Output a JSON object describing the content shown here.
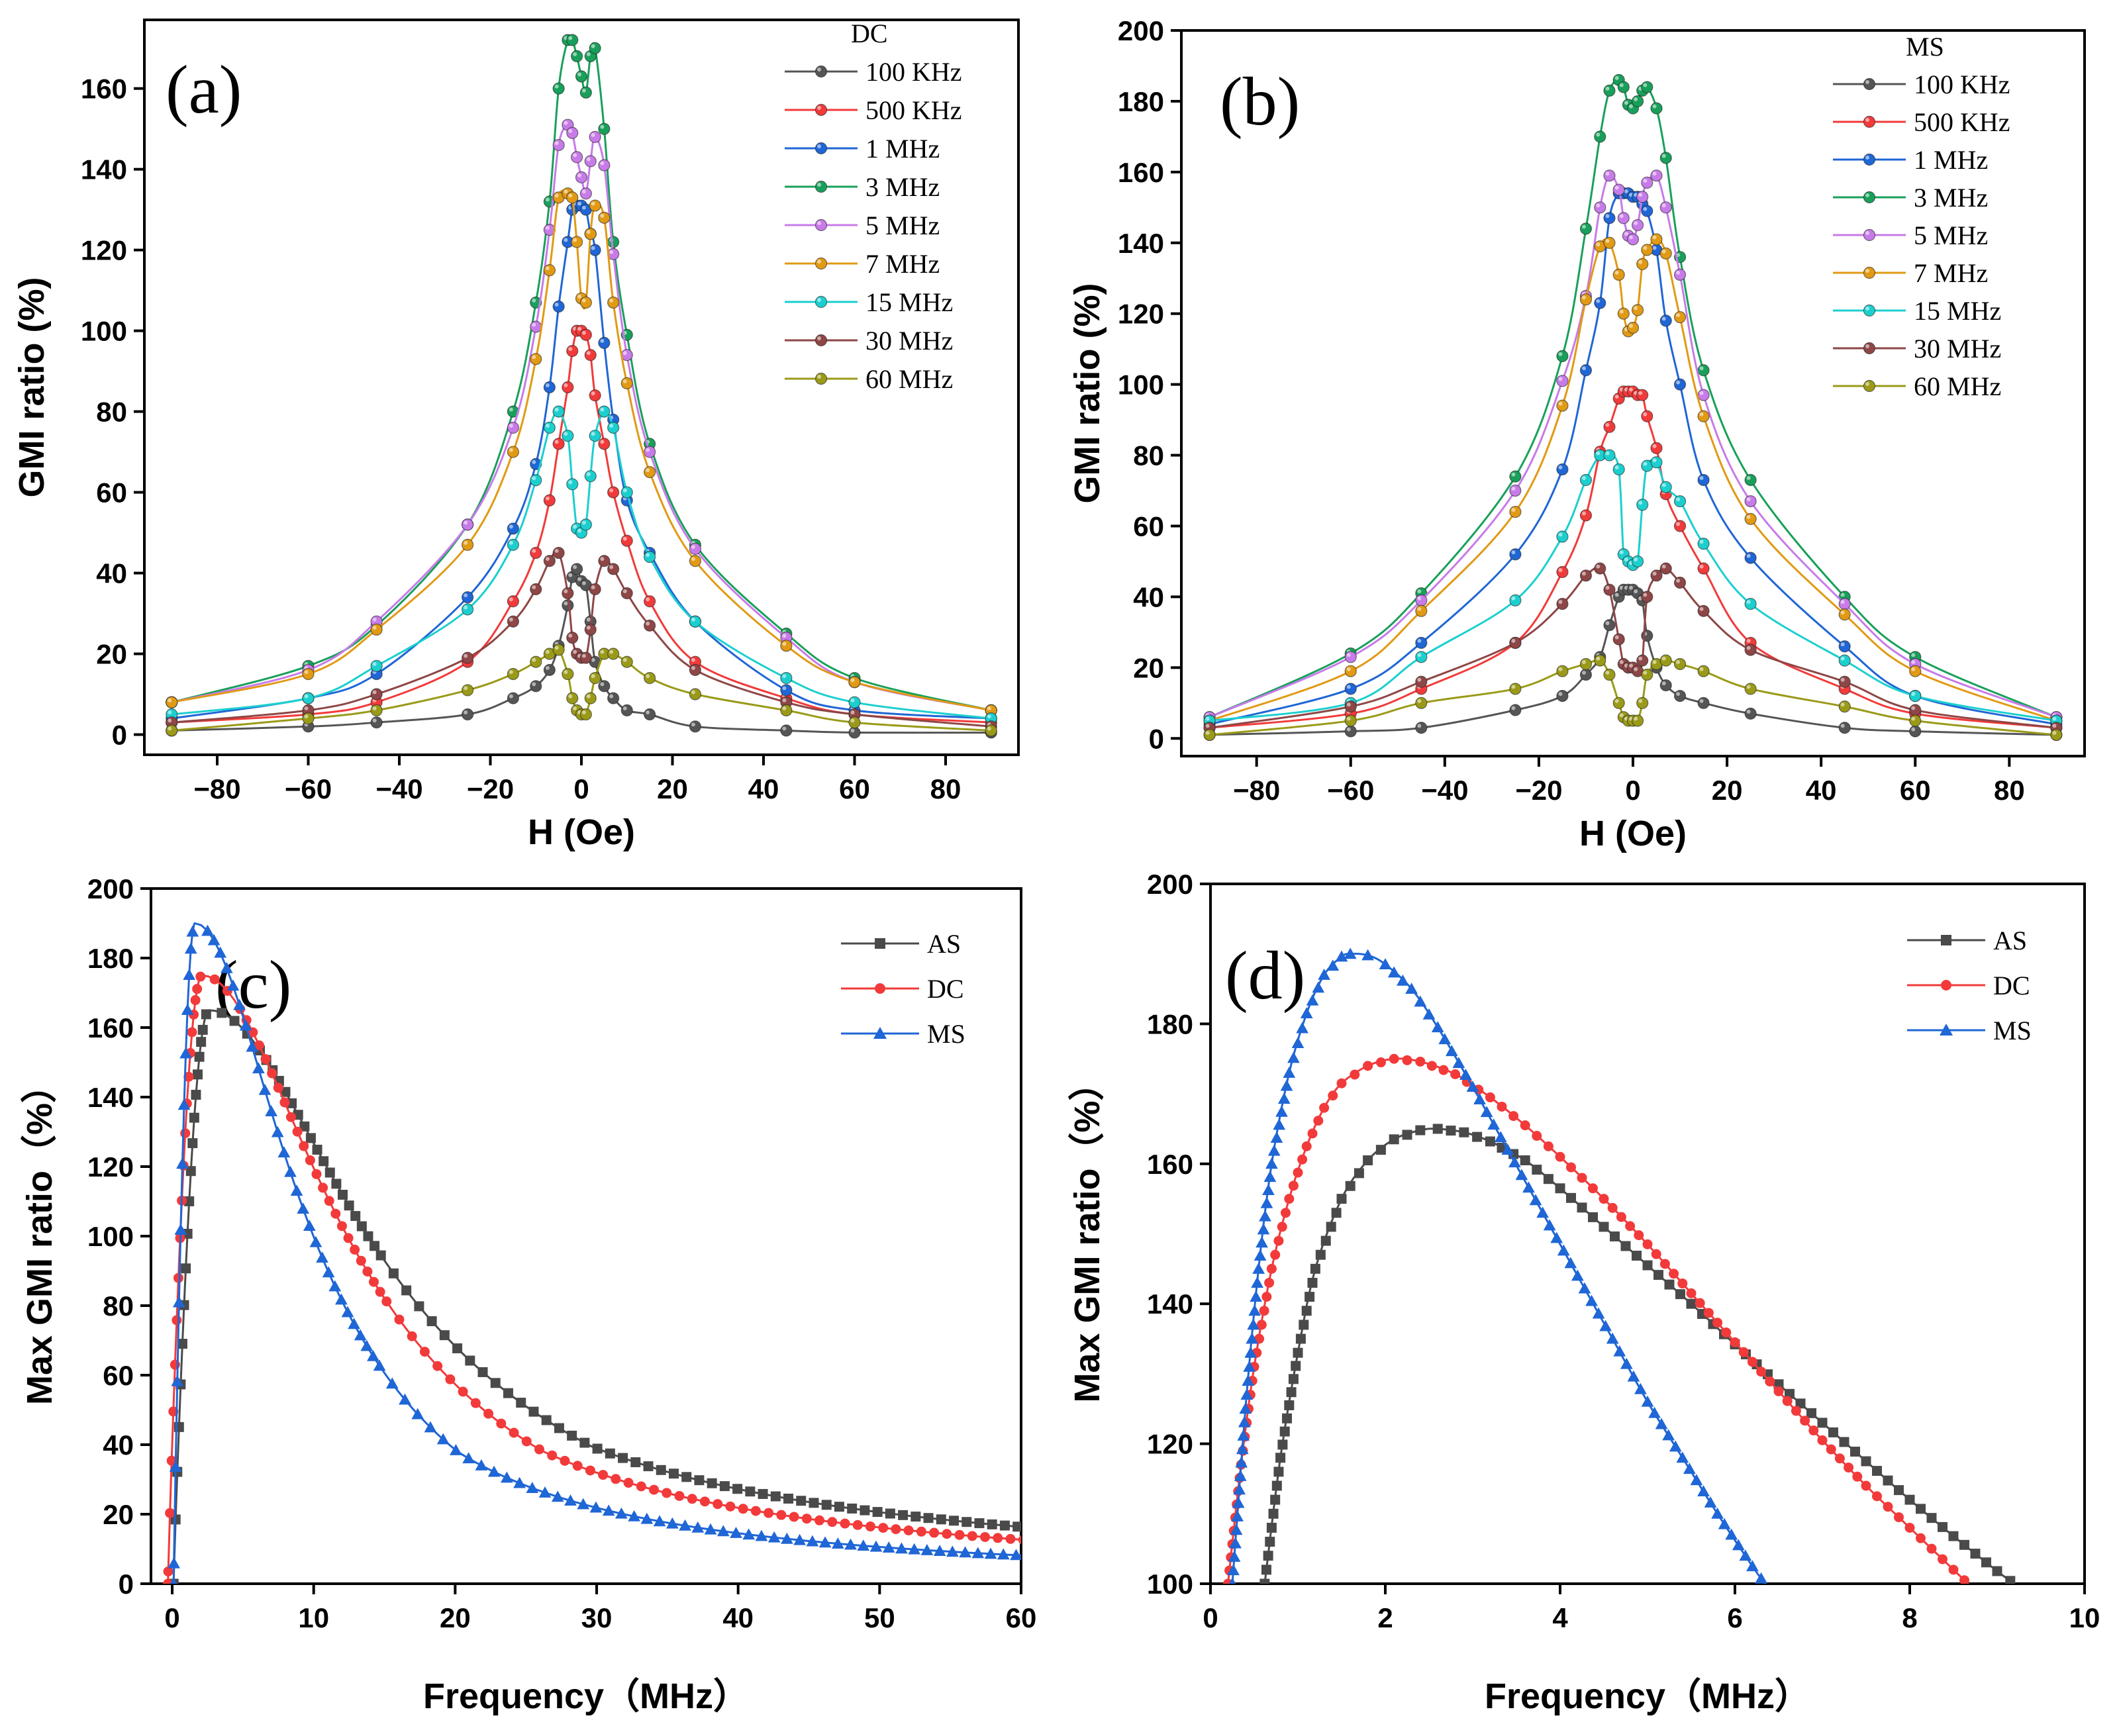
{
  "chart_data": [
    {
      "id": "a",
      "type": "line",
      "panel_label": "(a)",
      "legend_title": "DC",
      "xlabel": "H (Oe)",
      "ylabel": "GMI ratio (%)",
      "xlim": [
        -96,
        96
      ],
      "ylim": [
        -5,
        177
      ],
      "xticks": [
        -80,
        -60,
        -40,
        -20,
        0,
        20,
        40,
        60,
        80
      ],
      "yticks": [
        0,
        20,
        40,
        60,
        80,
        100,
        120,
        140,
        160
      ],
      "x": [
        -90,
        -60,
        -45,
        -25,
        -15,
        -10,
        -7,
        -5,
        -3,
        -2,
        -1,
        0,
        1,
        2,
        3,
        5,
        7,
        10,
        15,
        25,
        45,
        60,
        90
      ],
      "series": [
        {
          "name": "100 KHz",
          "color": "#555555",
          "values": [
            1,
            2,
            3,
            5,
            9,
            12,
            16,
            22,
            32,
            39,
            41,
            38,
            37,
            28,
            18,
            12,
            9,
            6,
            5,
            2,
            1,
            0.5,
            0.5
          ]
        },
        {
          "name": "500 KHz",
          "color": "#f23a3a",
          "values": [
            3,
            5,
            8,
            18,
            33,
            45,
            58,
            72,
            86,
            95,
            100,
            100,
            99,
            94,
            84,
            72,
            60,
            48,
            33,
            18,
            9,
            5,
            3
          ]
        },
        {
          "name": "1 MHz",
          "color": "#1f66d6",
          "values": [
            4,
            9,
            15,
            34,
            51,
            67,
            86,
            106,
            122,
            130,
            131,
            131,
            130,
            124,
            120,
            97,
            78,
            58,
            45,
            28,
            11,
            6,
            4
          ]
        },
        {
          "name": "3 MHz",
          "color": "#18a05a",
          "values": [
            8,
            17,
            27,
            52,
            80,
            107,
            132,
            160,
            172,
            172,
            168,
            163,
            159,
            168,
            170,
            150,
            122,
            99,
            72,
            47,
            25,
            14,
            6
          ]
        },
        {
          "name": "5 MHz",
          "color": "#c77be8",
          "values": [
            8,
            16,
            28,
            52,
            76,
            101,
            125,
            146,
            151,
            149,
            143,
            138,
            134,
            142,
            148,
            141,
            119,
            94,
            70,
            46,
            24,
            13,
            6
          ]
        },
        {
          "name": "7 MHz",
          "color": "#e19a14",
          "values": [
            8,
            15,
            26,
            47,
            70,
            93,
            115,
            133,
            134,
            133,
            122,
            108,
            107,
            124,
            131,
            128,
            107,
            87,
            65,
            43,
            22,
            13,
            6
          ]
        },
        {
          "name": "15 MHz",
          "color": "#1ccfcf",
          "values": [
            5,
            9,
            17,
            31,
            47,
            63,
            76,
            80,
            74,
            62,
            51,
            50,
            52,
            64,
            74,
            80,
            76,
            60,
            44,
            28,
            14,
            8,
            4
          ]
        },
        {
          "name": "30 MHz",
          "color": "#8e4646",
          "values": [
            3,
            6,
            10,
            19,
            28,
            36,
            43,
            45,
            35,
            24,
            20,
            19,
            19,
            26,
            36,
            43,
            41,
            35,
            27,
            16,
            8,
            5,
            2
          ]
        },
        {
          "name": "60 MHz",
          "color": "#9a9a18",
          "values": [
            1,
            4,
            6,
            11,
            15,
            18,
            20,
            21,
            15,
            9,
            6,
            5,
            5,
            9,
            14,
            20,
            20,
            18,
            14,
            10,
            6,
            3,
            1
          ]
        }
      ]
    },
    {
      "id": "b",
      "type": "line",
      "panel_label": "(b)",
      "legend_title": "MS",
      "xlabel": "H (Oe)",
      "ylabel": "GMI ratio (%)",
      "xlim": [
        -96,
        96
      ],
      "ylim": [
        -5,
        200
      ],
      "xticks": [
        -80,
        -60,
        -40,
        -20,
        0,
        20,
        40,
        60,
        80
      ],
      "yticks": [
        0,
        20,
        40,
        60,
        80,
        100,
        120,
        140,
        160,
        180,
        200
      ],
      "x": [
        -90,
        -60,
        -45,
        -25,
        -15,
        -10,
        -7,
        -5,
        -3,
        -2,
        -1,
        0,
        1,
        2,
        3,
        5,
        7,
        10,
        15,
        25,
        45,
        60,
        90
      ],
      "series": [
        {
          "name": "100 KHz",
          "color": "#555555",
          "values": [
            1,
            2,
            3,
            8,
            12,
            18,
            23,
            32,
            40,
            42,
            42,
            42,
            41,
            39,
            29,
            20,
            15,
            12,
            10,
            7,
            3,
            2,
            1
          ]
        },
        {
          "name": "500 KHz",
          "color": "#f23a3a",
          "values": [
            3,
            7,
            14,
            27,
            47,
            63,
            81,
            88,
            96,
            98,
            98,
            98,
            97,
            97,
            91,
            82,
            69,
            60,
            48,
            27,
            14,
            7,
            3
          ]
        },
        {
          "name": "1 MHz",
          "color": "#1f66d6",
          "values": [
            4,
            14,
            27,
            52,
            76,
            104,
            123,
            147,
            154,
            154,
            154,
            153,
            153,
            151,
            149,
            138,
            118,
            100,
            73,
            51,
            26,
            12,
            4
          ]
        },
        {
          "name": "3 MHz",
          "color": "#18a05a",
          "values": [
            6,
            24,
            41,
            74,
            108,
            144,
            170,
            183,
            186,
            184,
            179,
            178,
            180,
            183,
            184,
            178,
            164,
            136,
            104,
            73,
            40,
            23,
            6
          ]
        },
        {
          "name": "5 MHz",
          "color": "#c77be8",
          "values": [
            6,
            23,
            39,
            70,
            101,
            125,
            150,
            159,
            155,
            147,
            142,
            141,
            145,
            153,
            157,
            159,
            150,
            131,
            97,
            67,
            38,
            21,
            6
          ]
        },
        {
          "name": "7 MHz",
          "color": "#e19a14",
          "values": [
            5,
            19,
            36,
            64,
            94,
            124,
            139,
            140,
            131,
            120,
            115,
            116,
            121,
            134,
            138,
            141,
            137,
            119,
            91,
            62,
            35,
            19,
            5
          ]
        },
        {
          "name": "15 MHz",
          "color": "#1ccfcf",
          "values": [
            5,
            10,
            23,
            39,
            57,
            73,
            80,
            80,
            76,
            52,
            50,
            49,
            50,
            66,
            77,
            78,
            71,
            67,
            55,
            38,
            22,
            12,
            5
          ]
        },
        {
          "name": "30 MHz",
          "color": "#8e4646",
          "values": [
            3,
            9,
            16,
            27,
            38,
            46,
            48,
            42,
            28,
            21,
            20,
            20,
            19,
            22,
            40,
            46,
            48,
            44,
            36,
            25,
            16,
            8,
            3
          ]
        },
        {
          "name": "60 MHz",
          "color": "#9a9a18",
          "values": [
            1,
            5,
            10,
            14,
            19,
            21,
            22,
            18,
            10,
            6,
            5,
            5,
            5,
            10,
            18,
            21,
            22,
            21,
            19,
            14,
            9,
            5,
            1
          ]
        }
      ]
    },
    {
      "id": "c",
      "type": "line",
      "panel_label": "(c)",
      "xlabel": "Frequency（MHz）",
      "ylabel": "Max GMI ratio（%）",
      "xlim": [
        -1.5,
        60
      ],
      "ylim": [
        0,
        200
      ],
      "xticks": [
        0,
        10,
        20,
        30,
        40,
        50,
        60
      ],
      "yticks": [
        0,
        20,
        40,
        60,
        80,
        100,
        120,
        140,
        160,
        180,
        200
      ],
      "series": [
        {
          "name": "AS",
          "color": "#4a4a4a",
          "marker": "square",
          "peak_x": 2.6,
          "peak_y": 165,
          "zero_x": 0.1,
          "width": 9.0,
          "power": 0.94
        },
        {
          "name": "DC",
          "color": "#f23a3a",
          "marker": "circle",
          "peak_x": 2.1,
          "peak_y": 175,
          "zero_x": -0.3,
          "width": 8.0,
          "power": 1.02
        },
        {
          "name": "MS",
          "color": "#1f66d6",
          "marker": "triangle",
          "peak_x": 1.6,
          "peak_y": 190,
          "zero_x": 0.1,
          "width": 6.2,
          "power": 1.1
        }
      ]
    },
    {
      "id": "d",
      "type": "line",
      "panel_label": "(d)",
      "xlabel": "Frequency（MHz）",
      "ylabel": "Max GMI ratio（%）",
      "xlim": [
        0,
        10
      ],
      "ylim": [
        100,
        200
      ],
      "xticks": [
        0,
        2,
        4,
        6,
        8,
        10
      ],
      "yticks": [
        100,
        120,
        140,
        160,
        180,
        200
      ],
      "series": [
        {
          "name": "AS",
          "color": "#4a4a4a",
          "marker": "square",
          "points": [
            [
              0.62,
              100
            ],
            [
              0.8,
              118
            ],
            [
              1.0,
              133
            ],
            [
              1.2,
              145
            ],
            [
              1.5,
              155
            ],
            [
              1.8,
              160.5
            ],
            [
              2.1,
              163.5
            ],
            [
              2.4,
              164.8
            ],
            [
              2.6,
              165
            ],
            [
              2.9,
              164.5
            ],
            [
              3.2,
              163.2
            ],
            [
              3.6,
              160.5
            ],
            [
              4.0,
              156.5
            ],
            [
              4.5,
              151
            ],
            [
              5.0,
              145.5
            ],
            [
              5.5,
              140
            ],
            [
              6.0,
              134.2
            ],
            [
              6.5,
              128.5
            ],
            [
              7.0,
              123
            ],
            [
              7.5,
              117.5
            ],
            [
              8.0,
              112
            ],
            [
              8.5,
              106.8
            ],
            [
              9.0,
              101.8
            ],
            [
              9.3,
              99
            ]
          ]
        },
        {
          "name": "DC",
          "color": "#f23a3a",
          "marker": "circle",
          "points": [
            [
              0.2,
              100
            ],
            [
              0.35,
              117
            ],
            [
              0.5,
              131
            ],
            [
              0.7,
              145
            ],
            [
              0.9,
              155
            ],
            [
              1.1,
              162.5
            ],
            [
              1.3,
              168
            ],
            [
              1.5,
              171.5
            ],
            [
              1.8,
              174
            ],
            [
              2.1,
              175
            ],
            [
              2.4,
              174.6
            ],
            [
              2.8,
              172.8
            ],
            [
              3.2,
              169.5
            ],
            [
              3.6,
              165.5
            ],
            [
              4.0,
              161
            ],
            [
              4.5,
              155
            ],
            [
              5.0,
              148.5
            ],
            [
              5.5,
              141.5
            ],
            [
              6.0,
              134.5
            ],
            [
              6.5,
              127.5
            ],
            [
              7.0,
              120.5
            ],
            [
              7.5,
              114
            ],
            [
              8.0,
              108
            ],
            [
              8.5,
              102
            ],
            [
              8.75,
              99
            ]
          ]
        },
        {
          "name": "MS",
          "color": "#1f66d6",
          "marker": "triangle",
          "points": [
            [
              0.25,
              100
            ],
            [
              0.4,
              125
            ],
            [
              0.55,
              145
            ],
            [
              0.7,
              160
            ],
            [
              0.9,
              173
            ],
            [
              1.1,
              181.5
            ],
            [
              1.3,
              187
            ],
            [
              1.5,
              189.6
            ],
            [
              1.6,
              190
            ],
            [
              1.8,
              189.8
            ],
            [
              2.0,
              188.5
            ],
            [
              2.3,
              185
            ],
            [
              2.6,
              179.5
            ],
            [
              3.0,
              171
            ],
            [
              3.4,
              162
            ],
            [
              3.8,
              153
            ],
            [
              4.2,
              144
            ],
            [
              4.6,
              135
            ],
            [
              5.0,
              126
            ],
            [
              5.4,
              118
            ],
            [
              5.8,
              110
            ],
            [
              6.2,
              102.5
            ],
            [
              6.4,
              99
            ]
          ]
        }
      ]
    }
  ]
}
